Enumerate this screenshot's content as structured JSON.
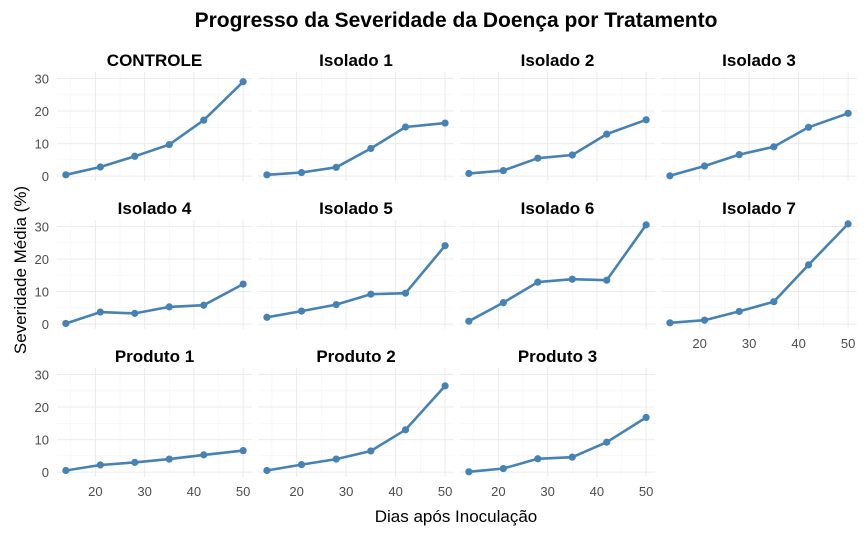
{
  "chart_data": {
    "type": "line",
    "title": "Progresso da Severidade da Doença por Tratamento",
    "xlabel": "Dias após Inoculação",
    "ylabel": "Severidade Média (%)",
    "x": [
      14,
      21,
      28,
      35,
      42,
      50
    ],
    "xticks": [
      20,
      30,
      40,
      50
    ],
    "yticks": [
      0,
      10,
      20,
      30
    ],
    "xlim": [
      12.2,
      51.8
    ],
    "ylim": [
      -1.5,
      32
    ],
    "grid": true,
    "line_color": "#4682b4",
    "facets": [
      {
        "name": "CONTROLE",
        "values": [
          0.4,
          2.8,
          6.1,
          9.7,
          17.2,
          29.0
        ]
      },
      {
        "name": "Isolado 1",
        "values": [
          0.4,
          1.1,
          2.7,
          8.5,
          15.1,
          16.3
        ]
      },
      {
        "name": "Isolado 2",
        "values": [
          0.8,
          1.7,
          5.5,
          6.5,
          12.9,
          17.3
        ]
      },
      {
        "name": "Isolado 3",
        "values": [
          0.1,
          3.1,
          6.6,
          9.0,
          15.0,
          19.3
        ]
      },
      {
        "name": "Isolado 4",
        "values": [
          0.2,
          3.7,
          3.3,
          5.3,
          5.8,
          12.3
        ]
      },
      {
        "name": "Isolado 5",
        "values": [
          2.1,
          4.0,
          6.0,
          9.2,
          9.5,
          24.1
        ]
      },
      {
        "name": "Isolado 6",
        "values": [
          0.9,
          6.6,
          12.9,
          13.8,
          13.5,
          30.5
        ]
      },
      {
        "name": "Isolado 7",
        "values": [
          0.4,
          1.2,
          3.9,
          6.9,
          18.2,
          30.8
        ]
      },
      {
        "name": "Produto 1",
        "values": [
          0.5,
          2.2,
          3.0,
          4.0,
          5.3,
          6.6
        ]
      },
      {
        "name": "Produto 2",
        "values": [
          0.5,
          2.3,
          4.0,
          6.5,
          13.0,
          26.5
        ]
      },
      {
        "name": "Produto 3",
        "values": [
          0.1,
          1.1,
          4.1,
          4.6,
          9.2,
          16.8
        ]
      }
    ]
  }
}
